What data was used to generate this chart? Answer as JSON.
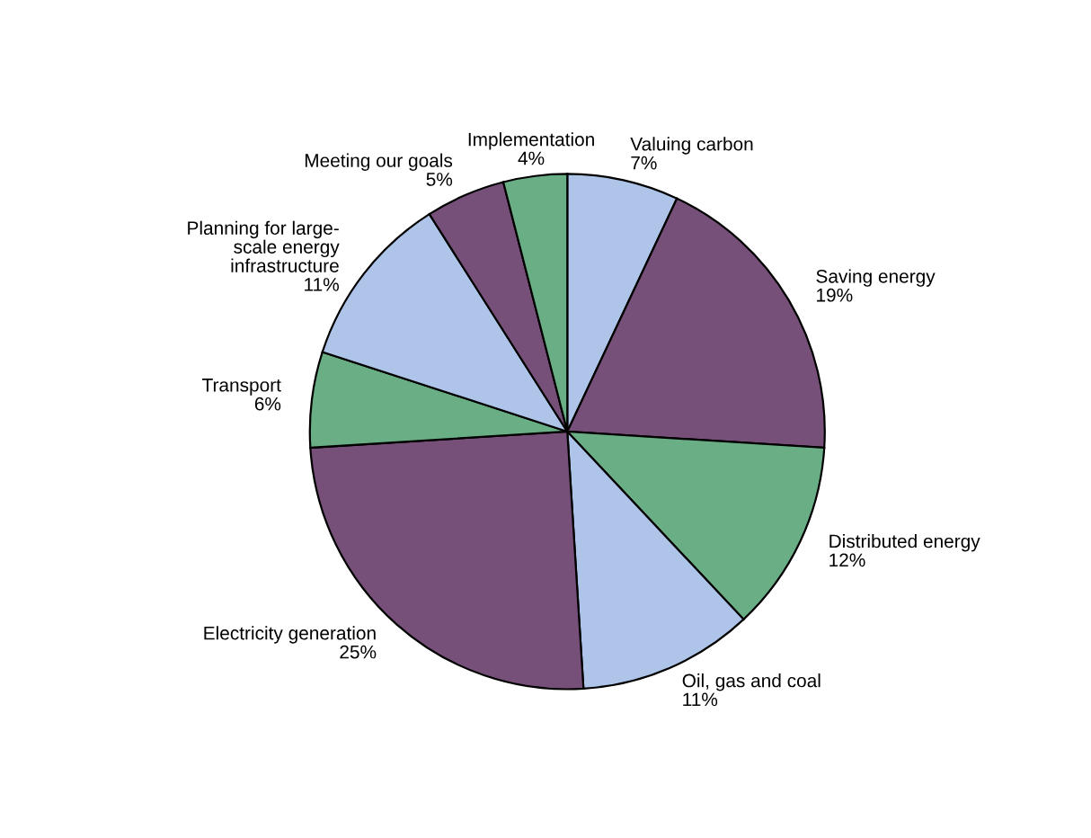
{
  "chart_data": {
    "type": "pie",
    "categories": [
      "Valuing carbon",
      "Saving energy",
      "Distributed energy",
      "Oil, gas and coal",
      "Electricity generation",
      "Transport",
      "Planning for large-\nscale energy\ninfrastructure",
      "Meeting our goals",
      "Implementation"
    ],
    "values": [
      7,
      19,
      12,
      11,
      25,
      6,
      11,
      5,
      4
    ],
    "colors": [
      "#aec4e8",
      "#77507a",
      "#6aae86",
      "#aec4e8",
      "#77507a",
      "#6aae86",
      "#aec4e8",
      "#77507a",
      "#6aae86"
    ],
    "value_labels": [
      "7%",
      "19%",
      "12%",
      "11%",
      "25%",
      "6%",
      "11%",
      "5%",
      "4%"
    ]
  }
}
